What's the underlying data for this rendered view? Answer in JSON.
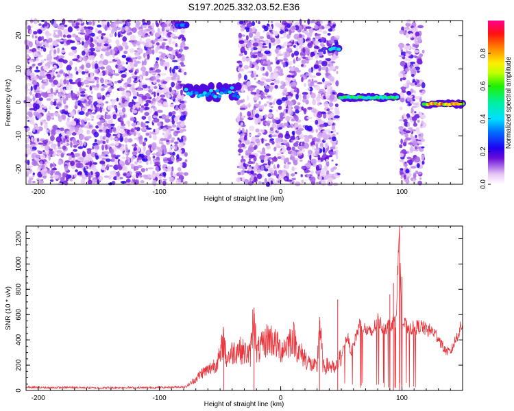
{
  "title": "S197.2025.332.03.52.E36",
  "chart_data": [
    {
      "type": "heatmap",
      "title": "S197.2025.332.03.52.E36",
      "xlabel": "Height of straight line (km)",
      "ylabel": "Frequency (Hz)",
      "xlim": [
        -210,
        150
      ],
      "ylim": [
        -24.5,
        24.5
      ],
      "xticks": [
        -200,
        -100,
        0,
        100
      ],
      "yticks": [
        -20,
        -10,
        0,
        10,
        20
      ],
      "colorbar": {
        "label": "Normalized spectral amplitude",
        "ticks": [
          "0.0",
          "0.2",
          "0.4",
          "0.6",
          "0.8"
        ],
        "range": [
          0,
          1
        ]
      },
      "noise_segments": [
        [
          -210,
          -78
        ],
        [
          -35,
          47
        ],
        [
          99,
          118
        ]
      ],
      "signal_tracks": [
        {
          "x_range": [
            -85,
            -78
          ],
          "freq": 23,
          "amplitude": 0.35
        },
        {
          "x_range": [
            -78,
            -35
          ],
          "freq": 3,
          "amplitude": 0.45
        },
        {
          "x_range": [
            41,
            48
          ],
          "freq": 16,
          "amplitude": 0.55
        },
        {
          "x_range": [
            49,
            96
          ],
          "freq": 1.5,
          "amplitude": 0.62
        },
        {
          "x_range": [
            118,
            150
          ],
          "freq": -0.5,
          "amplitude": 0.9
        }
      ]
    },
    {
      "type": "line",
      "xlabel": "Height of straight line (km)",
      "ylabel": "SNR (10 * v/v)",
      "xlim": [
        -210,
        150
      ],
      "ylim": [
        0,
        1300
      ],
      "xticks": [
        -200,
        -100,
        0,
        100
      ],
      "yticks": [
        0,
        200,
        400,
        600,
        800,
        1000,
        1200
      ],
      "color": "#e8333a",
      "series": [
        {
          "name": "SNR",
          "x": [
            -210,
            -190,
            -170,
            -150,
            -130,
            -110,
            -90,
            -78,
            -70,
            -65,
            -60,
            -55,
            -50,
            -47,
            -45,
            -40,
            -35,
            -30,
            -25,
            -22,
            -20,
            -15,
            -10,
            -5,
            0,
            5,
            10,
            15,
            20,
            25,
            30,
            32,
            35,
            40,
            45,
            47,
            50,
            55,
            58,
            60,
            65,
            70,
            75,
            80,
            85,
            90,
            95,
            98,
            100,
            105,
            110,
            115,
            120,
            125,
            130,
            135,
            140,
            145,
            150
          ],
          "values": [
            25,
            22,
            24,
            20,
            23,
            22,
            25,
            30,
            90,
            140,
            160,
            200,
            260,
            420,
            250,
            300,
            330,
            300,
            280,
            640,
            300,
            350,
            420,
            380,
            320,
            360,
            430,
            300,
            260,
            200,
            180,
            550,
            180,
            200,
            160,
            200,
            280,
            430,
            300,
            360,
            520,
            480,
            450,
            560,
            490,
            520,
            560,
            1300,
            540,
            500,
            490,
            510,
            480,
            470,
            420,
            320,
            300,
            420,
            530
          ]
        }
      ],
      "spikes": [
        {
          "x": -47,
          "y": 450
        },
        {
          "x": -22,
          "y": 655
        },
        {
          "x": 32,
          "y": 580
        },
        {
          "x": 47,
          "y": 720
        },
        {
          "x": 90,
          "y": 760
        },
        {
          "x": 93,
          "y": 850
        },
        {
          "x": 98,
          "y": 1300
        },
        {
          "x": 100,
          "y": 900
        }
      ]
    }
  ]
}
